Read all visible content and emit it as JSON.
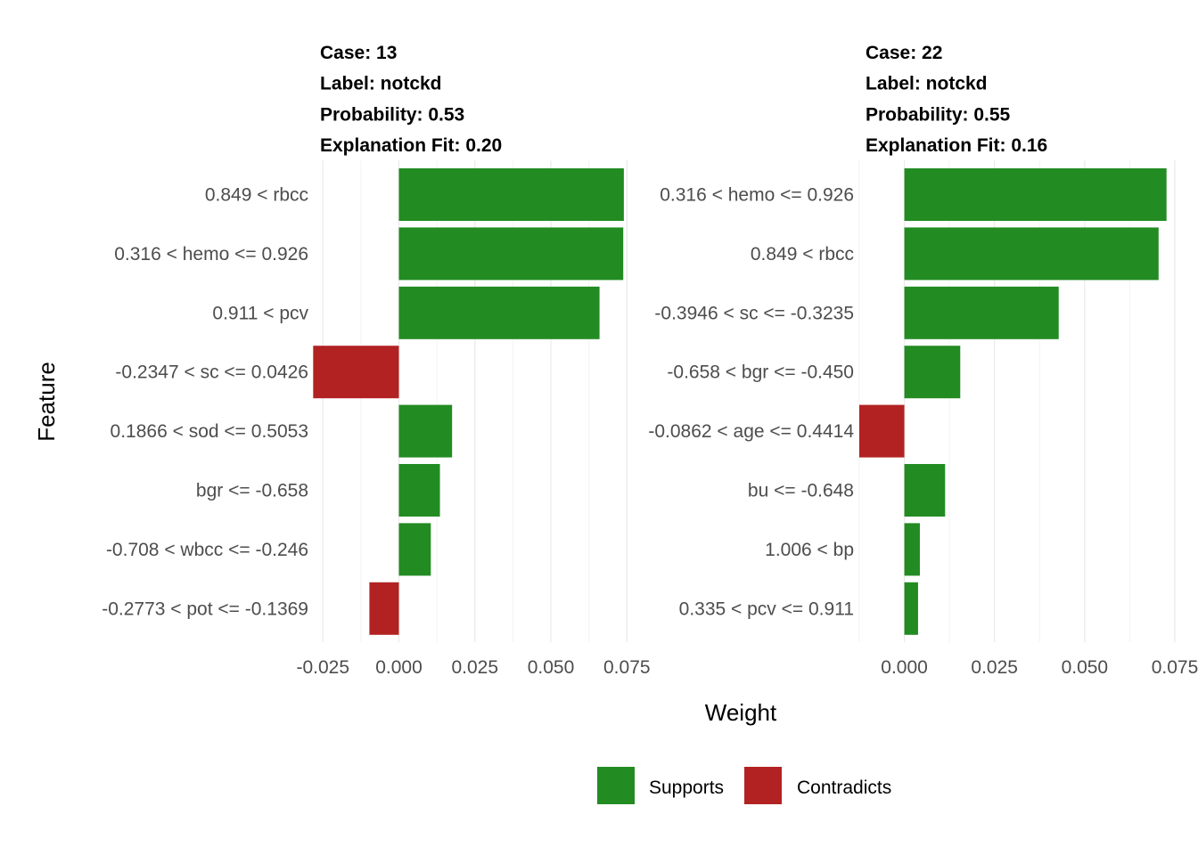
{
  "chart_data": {
    "type": "bar",
    "orientation": "horizontal",
    "facet": "lime explanation",
    "xlabel": "Weight",
    "ylabel": "Feature",
    "grid": true,
    "legend": {
      "placement": "bottom",
      "entries": [
        {
          "label": "Supports",
          "color": "#228B22"
        },
        {
          "label": "Contradicts",
          "color": "#B22222"
        }
      ]
    },
    "panels": [
      {
        "title_lines": [
          "Case: 13",
          "Label: notckd",
          "Probability: 0.53",
          "Explanation Fit: 0.20"
        ],
        "xlim": [
          -0.028,
          0.0755
        ],
        "xticks": [
          "-0.025",
          "0.000",
          "0.025",
          "0.050",
          "0.075"
        ],
        "xtick_values": [
          -0.025,
          0,
          0.025,
          0.05,
          0.075
        ],
        "features": [
          {
            "label": "0.849 < rbcc",
            "weight": 0.074
          },
          {
            "label": "0.316 < hemo <= 0.926",
            "weight": 0.0738
          },
          {
            "label": "0.911 < pcv",
            "weight": 0.066
          },
          {
            "label": "-0.2347 < sc <= 0.0426",
            "weight": -0.0282
          },
          {
            "label": "0.1866 < sod <= 0.5053",
            "weight": 0.0175
          },
          {
            "label": "bgr <= -0.658",
            "weight": 0.0135
          },
          {
            "label": "-0.708 < wbcc <= -0.246",
            "weight": 0.0105
          },
          {
            "label": "-0.2773 < pot <= -0.1369",
            "weight": -0.0097
          }
        ]
      },
      {
        "title_lines": [
          "Case: 22",
          "Label: notckd",
          "Probability: 0.55",
          "Explanation Fit: 0.16"
        ],
        "xlim": [
          -0.0125,
          0.075
        ],
        "xticks": [
          "0.000",
          "0.025",
          "0.050",
          "0.075"
        ],
        "xtick_values": [
          0,
          0.025,
          0.05,
          0.075
        ],
        "features": [
          {
            "label": "0.316 < hemo <= 0.926",
            "weight": 0.0727
          },
          {
            "label": "0.849 < rbcc",
            "weight": 0.0705
          },
          {
            "label": "-0.3946 < sc <= -0.3235",
            "weight": 0.0428
          },
          {
            "label": "-0.658 < bgr <= -0.450",
            "weight": 0.0155
          },
          {
            "label": "-0.0862 < age <= 0.4414",
            "weight": -0.0125
          },
          {
            "label": "bu <= -0.648",
            "weight": 0.0113
          },
          {
            "label": "1.006 < bp",
            "weight": 0.0043
          },
          {
            "label": "0.335 < pcv <= 0.911",
            "weight": 0.0038
          }
        ]
      }
    ]
  }
}
